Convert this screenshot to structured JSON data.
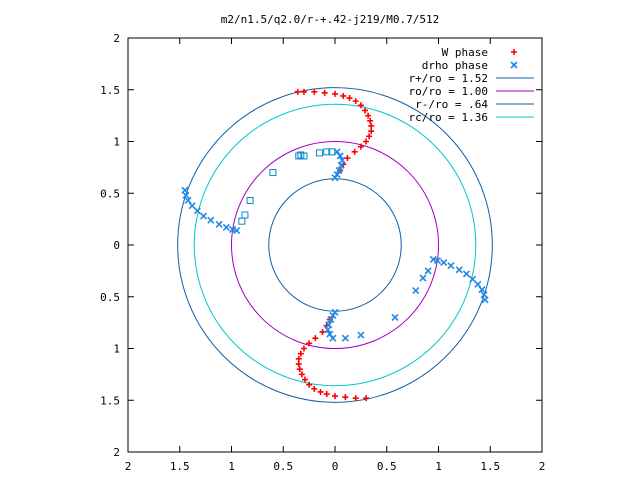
{
  "chart_data": {
    "type": "scatter",
    "title": "m2/n1.5/q2.0/r-+.42-j219/M0.7/512",
    "xlabel": "",
    "ylabel": "",
    "xlim": [
      -2,
      2
    ],
    "ylim": [
      -2,
      2
    ],
    "grid": false,
    "legend_position": "top-right",
    "x_tick_labels": [
      "2",
      "1.5",
      "1",
      "0.5",
      "0",
      "0.5",
      "1",
      "1.5",
      "2"
    ],
    "y_tick_labels": [
      "2",
      "1.5",
      "1",
      "0.5",
      "0",
      "0.5",
      "1",
      "1.5",
      "2"
    ],
    "colors": {
      "w_phase": "#ff0000",
      "drho_phase": "#1e88e5",
      "circle_blue": "#1060a8",
      "circle_magenta": "#a000c0",
      "circle_cyan": "#00c8c8",
      "squares": "#0a8ad0"
    },
    "circles": [
      {
        "name": "r+/ro = 1.52",
        "radius": 1.52,
        "color": "#1060a8"
      },
      {
        "name": "ro/ro = 1.00",
        "radius": 1.0,
        "color": "#a000c0"
      },
      {
        "name": "r-/ro = .64",
        "radius": 0.64,
        "color": "#1060a8"
      },
      {
        "name": "rc/ro = 1.36",
        "radius": 1.36,
        "color": "#00c8c8"
      }
    ],
    "series": [
      {
        "name": "W phase",
        "marker": "+",
        "color": "#ff0000",
        "points": [
          [
            -0.36,
            1.48
          ],
          [
            -0.3,
            1.48
          ],
          [
            -0.2,
            1.48
          ],
          [
            -0.1,
            1.47
          ],
          [
            0.0,
            1.46
          ],
          [
            0.08,
            1.44
          ],
          [
            0.14,
            1.42
          ],
          [
            0.2,
            1.39
          ],
          [
            0.25,
            1.35
          ],
          [
            0.29,
            1.3
          ],
          [
            0.32,
            1.25
          ],
          [
            0.34,
            1.2
          ],
          [
            0.35,
            1.15
          ],
          [
            0.35,
            1.1
          ],
          [
            0.33,
            1.05
          ],
          [
            0.3,
            1.0
          ],
          [
            0.25,
            0.95
          ],
          [
            0.19,
            0.9
          ],
          [
            0.12,
            0.84
          ],
          [
            0.08,
            0.78
          ],
          [
            0.05,
            0.72
          ],
          [
            -0.05,
            -0.72
          ],
          [
            -0.08,
            -0.78
          ],
          [
            -0.12,
            -0.84
          ],
          [
            -0.19,
            -0.9
          ],
          [
            -0.25,
            -0.95
          ],
          [
            -0.3,
            -1.0
          ],
          [
            -0.33,
            -1.05
          ],
          [
            -0.35,
            -1.1
          ],
          [
            -0.35,
            -1.15
          ],
          [
            -0.34,
            -1.2
          ],
          [
            -0.32,
            -1.25
          ],
          [
            -0.29,
            -1.3
          ],
          [
            -0.25,
            -1.35
          ],
          [
            -0.2,
            -1.39
          ],
          [
            -0.14,
            -1.42
          ],
          [
            -0.08,
            -1.44
          ],
          [
            0.0,
            -1.46
          ],
          [
            0.1,
            -1.47
          ],
          [
            0.2,
            -1.48
          ],
          [
            0.3,
            -1.48
          ]
        ]
      },
      {
        "name": "drho phase",
        "marker": "x",
        "color": "#1e88e5",
        "points": [
          [
            -1.45,
            0.53
          ],
          [
            -1.44,
            0.48
          ],
          [
            -1.42,
            0.43
          ],
          [
            -1.38,
            0.38
          ],
          [
            -1.33,
            0.33
          ],
          [
            -1.27,
            0.28
          ],
          [
            -1.2,
            0.24
          ],
          [
            -1.12,
            0.2
          ],
          [
            -1.05,
            0.17
          ],
          [
            -0.99,
            0.15
          ],
          [
            -0.95,
            0.14
          ],
          [
            1.45,
            -0.53
          ],
          [
            1.44,
            -0.48
          ],
          [
            1.42,
            -0.43
          ],
          [
            1.38,
            -0.38
          ],
          [
            1.33,
            -0.33
          ],
          [
            1.27,
            -0.28
          ],
          [
            1.2,
            -0.24
          ],
          [
            1.12,
            -0.2
          ],
          [
            1.05,
            -0.17
          ],
          [
            0.99,
            -0.15
          ],
          [
            0.95,
            -0.14
          ],
          [
            0.02,
            0.9
          ],
          [
            0.05,
            0.86
          ],
          [
            0.07,
            0.82
          ],
          [
            0.06,
            0.77
          ],
          [
            0.04,
            0.72
          ],
          [
            0.02,
            0.68
          ],
          [
            0.0,
            0.65
          ],
          [
            -0.02,
            -0.9
          ],
          [
            -0.05,
            -0.86
          ],
          [
            -0.07,
            -0.82
          ],
          [
            -0.06,
            -0.77
          ],
          [
            -0.04,
            -0.72
          ],
          [
            -0.02,
            -0.68
          ],
          [
            0.0,
            -0.65
          ],
          [
            0.1,
            -0.9
          ],
          [
            0.25,
            -0.87
          ],
          [
            0.58,
            -0.7
          ],
          [
            0.78,
            -0.44
          ],
          [
            0.85,
            -0.32
          ],
          [
            0.9,
            -0.25
          ]
        ]
      },
      {
        "name": "",
        "marker": "square",
        "color": "#0a8ad0",
        "points": [
          [
            -0.6,
            0.7
          ],
          [
            -0.3,
            0.86
          ],
          [
            -0.15,
            0.89
          ],
          [
            -0.08,
            0.9
          ],
          [
            -0.03,
            0.9
          ],
          [
            -0.35,
            0.86
          ],
          [
            -0.82,
            0.43
          ],
          [
            -0.87,
            0.29
          ],
          [
            -0.9,
            0.23
          ],
          [
            -0.33,
            0.87
          ]
        ]
      }
    ]
  }
}
